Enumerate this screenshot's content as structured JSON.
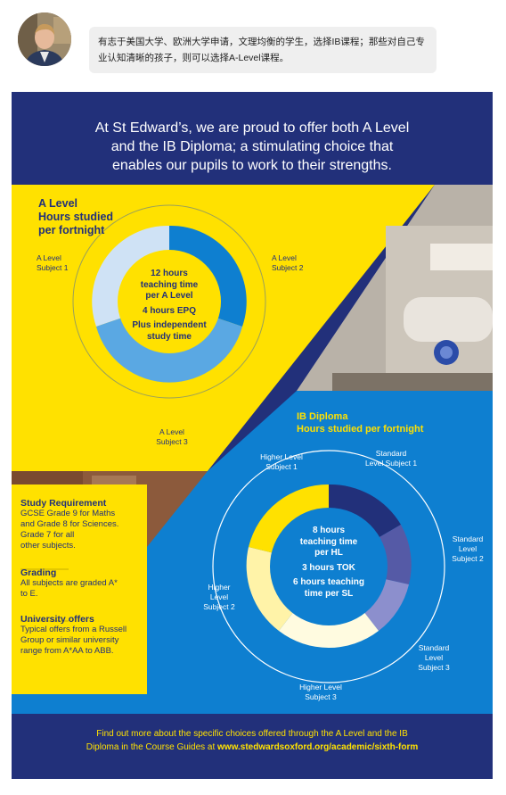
{
  "chat": {
    "message": "有志于美国大学、欧洲大学申请，文理均衡的学生，选择IB课程；那些对自己专业认知清晰的孩子，则可以选择A-Level课程。"
  },
  "poster": {
    "headline": [
      "At St Edward’s, we are proud to offer both A Level",
      "and the IB Diploma; a stimulating choice that",
      "enables our pupils to work to their strengths."
    ],
    "colors": {
      "navy": "#22307a",
      "yellow": "#ffe100",
      "blue": "#0e7fd0",
      "light_blue": "#5aa8e3",
      "pale_blue": "#cfe2f5",
      "purple_dark": "#555aa6",
      "purple_light": "#8c8fcd",
      "pale_yellow": "#fff3a8",
      "cream": "#fffbe0"
    },
    "a_level": {
      "title": [
        "A Level",
        "Hours studied",
        "per fortnight"
      ],
      "subject_1": [
        "A Level",
        "Subject 1"
      ],
      "subject_2": [
        "A Level",
        "Subject 2"
      ],
      "subject_3": [
        "A Level",
        "Subject 3"
      ],
      "center": [
        "12 hours",
        "teaching time",
        "per A Level",
        "4 hours EPQ",
        "Plus independent",
        "study time"
      ]
    },
    "ib": {
      "title": [
        "IB Diploma",
        "Hours studied per fortnight"
      ],
      "hl_1": [
        "Higher Level",
        "Subject 1"
      ],
      "hl_2": [
        "Higher",
        "Level",
        "Subject 2"
      ],
      "hl_3": [
        "Higher Level",
        "Subject 3"
      ],
      "sl_1": [
        "Standard",
        "Level Subject 1"
      ],
      "sl_2": [
        "Standard",
        "Level",
        "Subject 2"
      ],
      "sl_3": [
        "Standard",
        "Level",
        "Subject 3"
      ],
      "center": [
        "8 hours",
        "teaching time",
        "per HL",
        "3 hours TOK",
        "6 hours teaching",
        "time per SL"
      ]
    },
    "info": {
      "study_heading": "Study Requirement",
      "study_lines": [
        "GCSE Grade 9 for Maths",
        "and Grade 8 for Sciences.",
        "Grade 7 for all",
        "other subjects."
      ],
      "grading_heading": "Grading",
      "grading_lines": [
        "All subjects are graded A*",
        "to E."
      ],
      "offers_heading": "University offers",
      "offers_lines": [
        "Typical offers from a Russell",
        "Group or similar university",
        "range from A*AA to ABB."
      ]
    },
    "footer": {
      "line1": "Find out more about the specific choices offered through the A Level and the IB",
      "line2_prefix": "Diploma in the Course Guides at ",
      "url": "www.stedwardsoxford.org/academic/sixth-form"
    }
  }
}
